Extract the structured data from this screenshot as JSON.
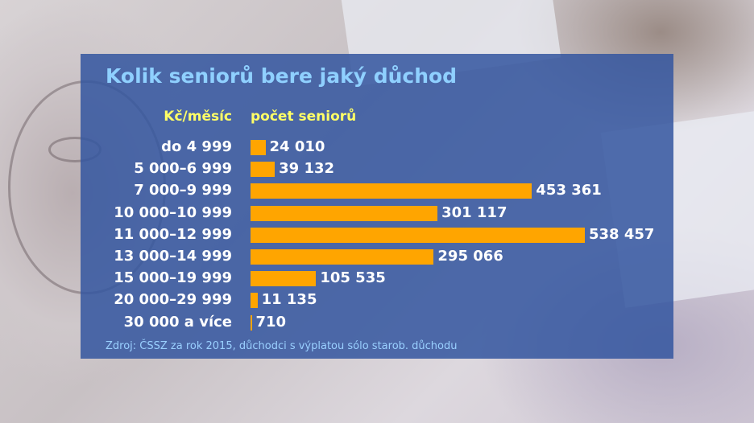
{
  "chart_data": {
    "type": "bar",
    "orientation": "horizontal",
    "title": "Kolik seniorů bere jaký důchod",
    "category_header": "Kč/měsíc",
    "value_header": "počet seniorů",
    "categories": [
      "do 4 999",
      "5 000–6 999",
      "7 000–9 999",
      "10 000–10 999",
      "11 000–12 999",
      "13 000–14 999",
      "15 000–19 999",
      "20 000–29 999",
      "30 000 a více"
    ],
    "values": [
      24010,
      39132,
      453361,
      301117,
      538457,
      295066,
      105535,
      11135,
      710
    ],
    "value_labels": [
      "24 010",
      "39 132",
      "453 361",
      "301 117",
      "538 457",
      "295 066",
      "105 535",
      "11 135",
      "710"
    ],
    "source": "Zdroj: ČSSZ za rok 2015, důchodci s výplatou sólo starob. důchodu",
    "bar_color": "#ffa500",
    "grid": false,
    "legend": "none"
  }
}
